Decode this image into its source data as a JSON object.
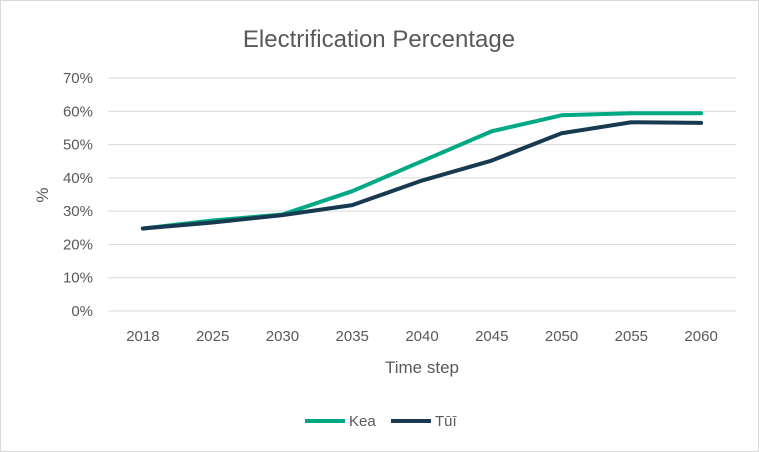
{
  "chart_data": {
    "type": "line",
    "title": "Electrification Percentage",
    "xlabel": "Time step",
    "ylabel": "%",
    "categories": [
      "2018",
      "2025",
      "2030",
      "2035",
      "2040",
      "2045",
      "2050",
      "2055",
      "2060"
    ],
    "y_ticks": [
      "0%",
      "10%",
      "20%",
      "30%",
      "40%",
      "50%",
      "60%",
      "70%"
    ],
    "ylim": [
      0,
      70
    ],
    "grid": true,
    "legend_position": "bottom",
    "series": [
      {
        "name": "Kea",
        "color": "#00a884",
        "values": [
          24.8,
          27.2,
          29.0,
          36.0,
          45.0,
          54.0,
          58.8,
          59.4,
          59.4
        ]
      },
      {
        "name": "Tūī",
        "color": "#173a51",
        "values": [
          24.8,
          26.6,
          28.8,
          31.8,
          39.2,
          45.2,
          53.4,
          56.7,
          56.5
        ]
      }
    ]
  }
}
